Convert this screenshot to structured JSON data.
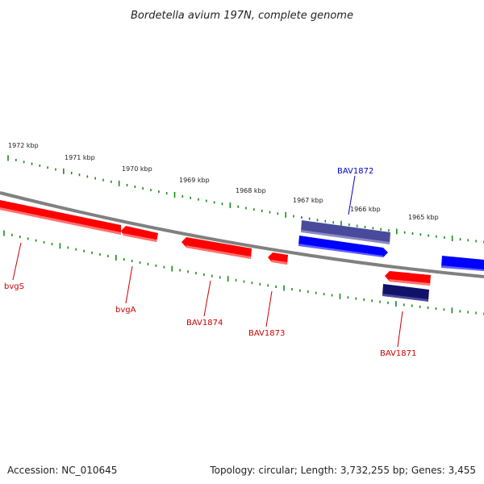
{
  "title": "Bordetella avium 197N, complete genome",
  "footer": {
    "accession": "Accession: NC_010645",
    "topology": "Topology: circular; Length: 3,732,255 bp; Genes: 3,455"
  },
  "colors": {
    "forward_gene": "#ff0000",
    "reverse_gene": "#0000ff",
    "dark_blue_gene": "#11116a",
    "purple_gene": "#4a4a9c",
    "backbone": "#808080",
    "ticks": "#1a8a1a",
    "label_red": "#cc0000",
    "label_blue": "#0000cc"
  },
  "kbp_labels": [
    "1972 kbp",
    "1971 kbp",
    "1970 kbp",
    "1969 kbp",
    "1968 kbp",
    "1967 kbp",
    "1966 kbp",
    "1965 kbp"
  ],
  "gene_labels": [
    {
      "id": "bvgS",
      "text": "bvgS",
      "strand": "reverse-red"
    },
    {
      "id": "bvgA",
      "text": "bvgA",
      "strand": "reverse-red"
    },
    {
      "id": "BAV1874",
      "text": "BAV1874",
      "strand": "reverse-red"
    },
    {
      "id": "BAV1873",
      "text": "BAV1873",
      "strand": "reverse-red"
    },
    {
      "id": "BAV1872",
      "text": "BAV1872",
      "strand": "forward-blue"
    },
    {
      "id": "BAV1871",
      "text": "BAV1871",
      "strand": "reverse-red"
    }
  ]
}
